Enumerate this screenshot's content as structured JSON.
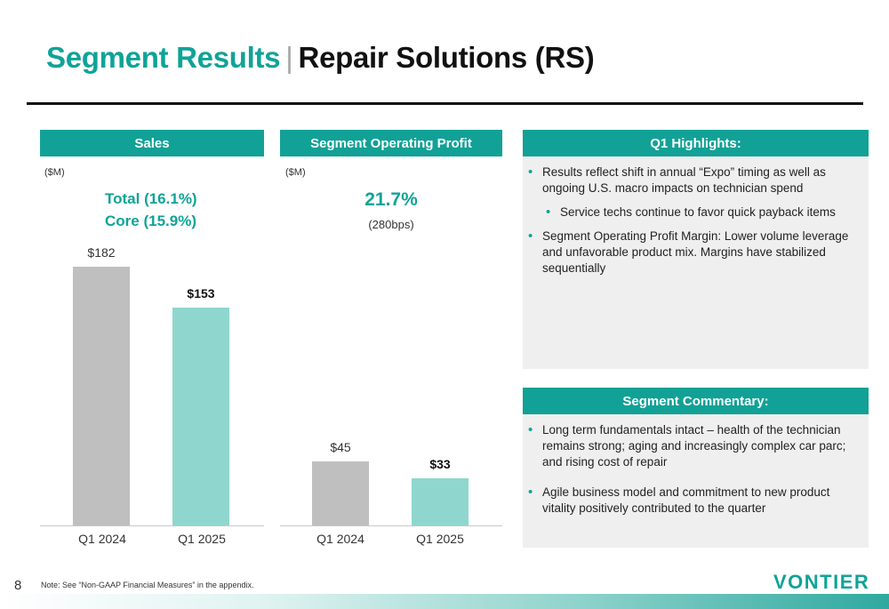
{
  "title": {
    "part1": "Segment Results",
    "separator": "|",
    "part2": "Repair Solutions (RS)"
  },
  "sales": {
    "header": "Sales",
    "unit": "($M)",
    "total_line": "Total  (16.1%)",
    "core_line": "Core  (15.9%)"
  },
  "profit": {
    "header": "Segment Operating Profit",
    "unit": "($M)",
    "margin": "21.7%",
    "margin_change": "(280bps)"
  },
  "chart_data": [
    {
      "type": "bar",
      "categories": [
        "Q1 2024",
        "Q1 2025"
      ],
      "values": [
        182,
        153
      ],
      "value_labels": [
        "$182",
        "$153"
      ],
      "colors": [
        "#bfbfbf",
        "#8fd6cf"
      ]
    },
    {
      "type": "bar",
      "categories": [
        "Q1 2024",
        "Q1 2025"
      ],
      "values": [
        45,
        33
      ],
      "value_labels": [
        "$45",
        "$33"
      ],
      "colors": [
        "#bfbfbf",
        "#8fd6cf"
      ]
    }
  ],
  "highlights": {
    "header": "Q1 Highlights:",
    "items": [
      "Results reflect shift in annual “Expo” timing as well as ongoing U.S. macro impacts on technician spend",
      "Service techs continue to favor quick payback items",
      "Segment Operating Profit Margin: Lower volume leverage and unfavorable product mix. Margins have stabilized sequentially"
    ]
  },
  "commentary": {
    "header": "Segment Commentary:",
    "items": [
      "Long term fundamentals intact – health of the technician remains strong; aging and increasingly complex car parc; and rising cost of repair",
      "Agile business model and commitment to new product vitality positively contributed to the quarter"
    ]
  },
  "footer": {
    "page_number": "8",
    "note": "Note: See “Non-GAAP Financial Measures” in the appendix.",
    "logo": "VONTIER"
  },
  "colors": {
    "accent": "#12a196",
    "bar_prior": "#bfbfbf",
    "bar_current": "#8fd6cf"
  }
}
